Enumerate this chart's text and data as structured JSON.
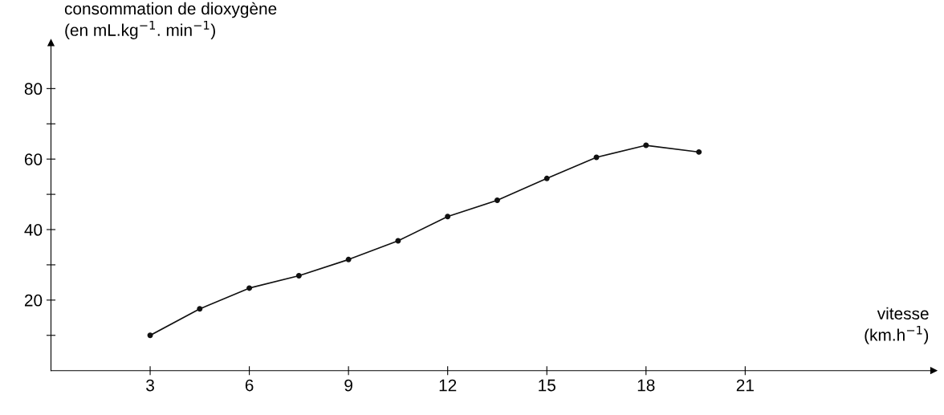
{
  "chart_data": {
    "type": "line",
    "ylabel": "consommation de dioxygène\n(en mL.kg$^{−1}$. min$^{−1}$)",
    "xlabel": "vitesse\n(km.h$^{−1}$)",
    "x": [
      3,
      4.5,
      6,
      7.5,
      9,
      10.5,
      12,
      13.5,
      15,
      16.5,
      18,
      19.6
    ],
    "series": [
      {
        "color": "#111111",
        "values": [
          10,
          17.5,
          23.4,
          26.9,
          31.5,
          36.8,
          43.7,
          48.3,
          54.5,
          60.5,
          63.9,
          62
        ]
      }
    ],
    "xlim": [
      0,
      26.7
    ],
    "ylim": [
      0,
      93
    ],
    "xticks": [
      3,
      6,
      9,
      12,
      15,
      18,
      21
    ],
    "yticks": [
      {
        "value": 10,
        "label": null
      },
      20,
      {
        "value": 30,
        "label": null
      },
      40,
      {
        "value": 50,
        "label": null
      },
      60,
      {
        "value": 70,
        "label": null
      },
      80
    ],
    "marker": "circle",
    "line_style": "solid",
    "grid": false,
    "legend": false
  }
}
